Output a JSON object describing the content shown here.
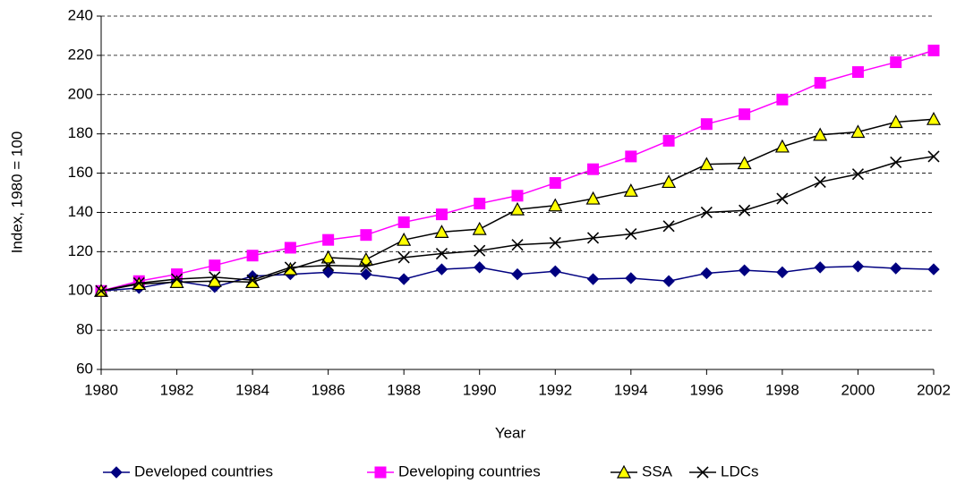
{
  "chart_data": {
    "type": "line",
    "xlabel": "Year",
    "ylabel": "Index, 1980 = 100",
    "x": [
      1980,
      1981,
      1982,
      1983,
      1984,
      1985,
      1986,
      1987,
      1988,
      1989,
      1990,
      1991,
      1992,
      1993,
      1994,
      1995,
      1996,
      1997,
      1998,
      1999,
      2000,
      2001,
      2002
    ],
    "series": [
      {
        "name": "Developed countries",
        "color": "#000080",
        "marker": "diamond",
        "marker_color": "#000080",
        "values": [
          100,
          101.5,
          105,
          102,
          107.5,
          108.5,
          109.5,
          108.5,
          106,
          111,
          112,
          108.5,
          110,
          106,
          106.5,
          105,
          109,
          110.5,
          109.5,
          112,
          112.5,
          111.5,
          111
        ]
      },
      {
        "name": "Developing countries",
        "color": "#ff00ff",
        "marker": "square",
        "marker_color": "#ff00ff",
        "values": [
          100,
          105,
          108.5,
          113,
          118,
          122,
          126,
          128.5,
          135,
          139,
          144.5,
          148.5,
          155,
          162,
          168.5,
          176.5,
          185,
          190,
          197.5,
          206,
          211.5,
          216.5,
          222.5
        ]
      },
      {
        "name": "SSA",
        "color": "#000000",
        "marker": "triangle",
        "marker_color": "#ffff00",
        "values": [
          100,
          103.5,
          104.5,
          105,
          104.5,
          111,
          117,
          116,
          126,
          130,
          131.5,
          141.5,
          143.5,
          147,
          151,
          155.5,
          164.5,
          165,
          173.5,
          179.5,
          181,
          186,
          187.5
        ]
      },
      {
        "name": "LDCs",
        "color": "#000000",
        "marker": "x",
        "marker_color": "#000000",
        "values": [
          100,
          104,
          106,
          107,
          105.5,
          112,
          113,
          112.5,
          117,
          119,
          120.5,
          123.5,
          124.5,
          127,
          129,
          133,
          140,
          141,
          147,
          155.5,
          159.5,
          165.5,
          168.5
        ]
      }
    ],
    "xlim": [
      1980,
      2002
    ],
    "xticks": [
      1980,
      1982,
      1984,
      1986,
      1988,
      1990,
      1992,
      1994,
      1996,
      1998,
      2000,
      2002
    ],
    "ylim": [
      60,
      240
    ],
    "yticks": [
      60,
      80,
      100,
      120,
      140,
      160,
      180,
      200,
      220,
      240
    ],
    "grid": true,
    "legend": "bottom"
  }
}
